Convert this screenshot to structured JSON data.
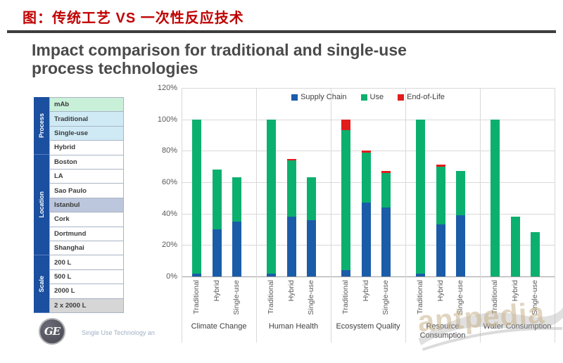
{
  "slide": {
    "title_cn": "图：传统工艺 VS 一次性反应技术",
    "heading": "Impact comparison for traditional and single-use process technologies",
    "footer_note": "Single Use Technology an",
    "logo_text": "GE",
    "watermark": "antpedia"
  },
  "sidebar": {
    "strip_color": "#1b4f9f",
    "header": {
      "label": "mAb",
      "bg": "#c9f0d9"
    },
    "groups": [
      {
        "label": "Process",
        "rows": [
          {
            "label": "Traditional",
            "bg": "#cfeaf5"
          },
          {
            "label": "Single-use",
            "bg": "#cfeaf5"
          },
          {
            "label": "Hybrid",
            "bg": "#ffffff"
          }
        ]
      },
      {
        "label": "Location",
        "rows": [
          {
            "label": "Boston",
            "bg": "#ffffff"
          },
          {
            "label": "LA",
            "bg": "#ffffff"
          },
          {
            "label": "Sao Paulo",
            "bg": "#ffffff"
          },
          {
            "label": "Istanbul",
            "bg": "#bcc6dc"
          },
          {
            "label": "Cork",
            "bg": "#ffffff"
          },
          {
            "label": "Dortmund",
            "bg": "#ffffff"
          },
          {
            "label": "Shanghai",
            "bg": "#ffffff"
          }
        ]
      },
      {
        "label": "Scale",
        "rows": [
          {
            "label": "200 L",
            "bg": "#ffffff"
          },
          {
            "label": "500 L",
            "bg": "#ffffff"
          },
          {
            "label": "2000 L",
            "bg": "#ffffff"
          },
          {
            "label": "2 x 2000 L",
            "bg": "#d6d6d6"
          }
        ]
      }
    ]
  },
  "chart_data": {
    "type": "bar",
    "subtype": "stacked",
    "title": "",
    "categories": [
      "Climate Change",
      "Human Health",
      "Ecosystem Quality",
      "Resource Consumption",
      "Water Consumption"
    ],
    "bar_labels": [
      "Traditional",
      "Hybrid",
      "Single-use"
    ],
    "series": [
      {
        "name": "Supply Chain",
        "color": "#1b5ca8",
        "values": [
          [
            2,
            30,
            35
          ],
          [
            2,
            38,
            36
          ],
          [
            4,
            47,
            44
          ],
          [
            2,
            33,
            39
          ],
          [
            0,
            0,
            0
          ]
        ]
      },
      {
        "name": "Use",
        "color": "#0cb06e",
        "values": [
          [
            98,
            38,
            28
          ],
          [
            98,
            36,
            27
          ],
          [
            89,
            32,
            22
          ],
          [
            98,
            37,
            28
          ],
          [
            100,
            38,
            28
          ]
        ]
      },
      {
        "name": "End-of-Life",
        "color": "#e11c1c",
        "values": [
          [
            0,
            0,
            0
          ],
          [
            0,
            1,
            0
          ],
          [
            7,
            1,
            1
          ],
          [
            0,
            1,
            0
          ],
          [
            0,
            0,
            0
          ]
        ]
      }
    ],
    "bar_totals": [
      [
        100,
        68,
        63
      ],
      [
        100,
        75,
        63
      ],
      [
        100,
        80,
        67
      ],
      [
        100,
        71,
        67
      ],
      [
        100,
        38,
        28
      ]
    ],
    "ylabel": "",
    "xlabel": "",
    "ylim": [
      0,
      120
    ],
    "ytick_step": 20,
    "ytick_labels": [
      "0%",
      "20%",
      "40%",
      "60%",
      "80%",
      "100%",
      "120%"
    ],
    "grid": true,
    "legend_position": "top-center"
  }
}
